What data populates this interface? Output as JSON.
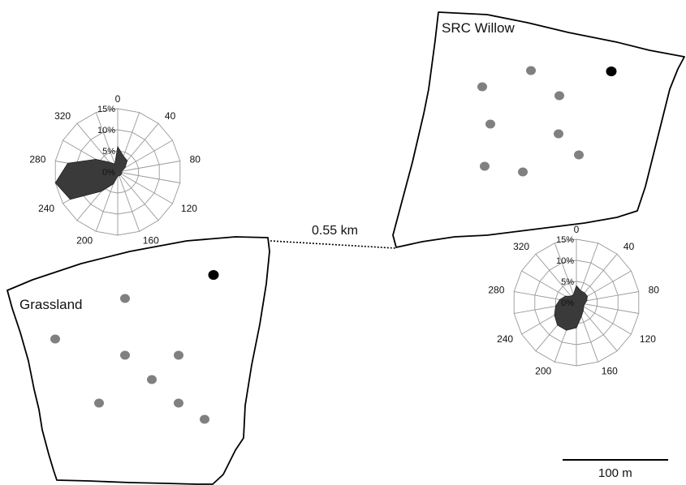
{
  "colors": {
    "sampling_point": "#808080",
    "reference_point": "#000000",
    "rose_fill": "#3a3a3a",
    "grid": "#9a9a9a",
    "outline": "#000000"
  },
  "fields": {
    "willow": {
      "label": "SRC Willow",
      "sampling_points": 8,
      "reference_points": 1
    },
    "grassland": {
      "label": "Grassland",
      "sampling_points": 8,
      "reference_points": 1
    }
  },
  "distance": {
    "label": "0.55 km"
  },
  "scale_bar": {
    "label": "100 m"
  },
  "wind_roses": {
    "ring_labels": [
      "0%",
      "5%",
      "10%",
      "15%"
    ],
    "direction_labels": [
      "0",
      "40",
      "80",
      "120",
      "160",
      "200",
      "240",
      "280",
      "320"
    ],
    "grassland_rose": {
      "values_percent": [
        6,
        4,
        3.5,
        2,
        1,
        1,
        1,
        1,
        1,
        1,
        3,
        6,
        13,
        15,
        12,
        6,
        3,
        2
      ]
    },
    "willow_rose": {
      "values_percent": [
        4,
        3,
        3,
        3,
        2.5,
        2,
        2,
        2.5,
        3.5,
        6,
        7,
        7,
        6,
        5,
        4,
        3,
        2,
        2
      ]
    }
  }
}
